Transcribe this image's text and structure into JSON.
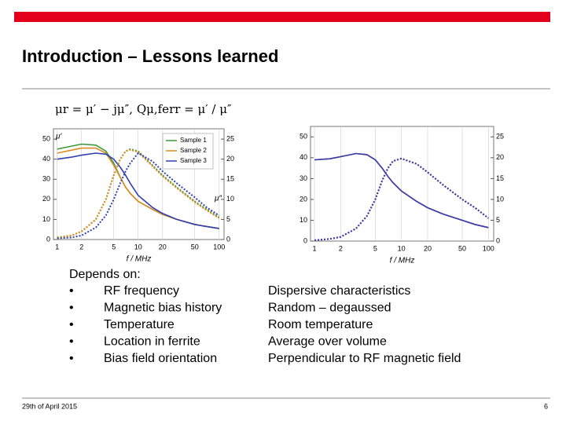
{
  "slide": {
    "title": "Introduction – Lessons learned",
    "formula": "μr = μ′ − jμ″,  Qμ,ferr = μ′ / μ″",
    "left_heading": "Depends on:",
    "bullets": [
      {
        "marker": "•",
        "text": "RF frequency"
      },
      {
        "marker": "•",
        "text": "Magnetic bias history"
      },
      {
        "marker": "•",
        "text": "Temperature"
      },
      {
        "marker": "•",
        "text": "Location in ferrite"
      },
      {
        "marker": "•",
        "text": "Bias field orientation"
      }
    ],
    "right_items": [
      "Dispersive characteristics",
      "Random – degaussed",
      "Room temperature",
      "Average over volume",
      "Perpendicular to RF magnetic field"
    ],
    "footer_date": "29th of April 2015",
    "page_number": "6"
  },
  "chart_data": [
    {
      "type": "line",
      "xscale": "log",
      "xlabel": "f / MHz",
      "ylabel": "μ′",
      "y2label": "μ″",
      "legend": "upper right",
      "x": [
        1,
        1.5,
        2,
        3,
        4,
        5,
        6,
        7,
        8,
        10,
        15,
        20,
        30,
        50,
        70,
        100
      ],
      "xlim": [
        0.9,
        115
      ],
      "xticks": [
        1,
        2,
        5,
        10,
        20,
        50,
        100
      ],
      "ylim": [
        0,
        52
      ],
      "yticks": [
        0,
        10,
        20,
        30,
        40,
        50
      ],
      "y2lim": [
        0,
        26
      ],
      "y2ticks": [
        0,
        5,
        10,
        15,
        20,
        25
      ],
      "series": [
        {
          "name": "Sample 1",
          "color": "#3a9a3a",
          "style": "solid",
          "values": [
            45,
            46.5,
            47.5,
            47,
            44,
            38,
            31,
            26,
            23,
            19,
            15,
            12.5,
            10,
            7.5,
            6.5,
            5.5
          ]
        },
        {
          "name": "Sample 2",
          "color": "#e08a20",
          "style": "solid",
          "values": [
            43,
            44.5,
            45.5,
            45.5,
            43,
            37,
            31,
            26,
            23,
            19,
            15,
            12.5,
            10,
            7.5,
            6.5,
            5.5
          ]
        },
        {
          "name": "Sample 3",
          "color": "#3040b0",
          "style": "solid",
          "values": [
            40,
            41,
            42,
            43,
            42.5,
            40,
            36,
            32,
            28,
            22,
            16,
            13,
            10,
            7.5,
            6.5,
            5.5
          ]
        },
        {
          "color": "#3a9a3a",
          "style": "dashed",
          "axis": "y2",
          "values": [
            0.5,
            1,
            2,
            5,
            10,
            16,
            20,
            22,
            22.5,
            22,
            18.5,
            16,
            13,
            9.5,
            7.5,
            5.5
          ]
        },
        {
          "color": "#e08a20",
          "style": "dashed",
          "axis": "y2",
          "values": [
            0.5,
            1,
            2,
            5,
            10,
            16,
            20,
            22,
            22.3,
            21.8,
            18.3,
            15.8,
            12.8,
            9.3,
            7.3,
            5.3
          ]
        },
        {
          "color": "#3040b0",
          "style": "dashed",
          "axis": "y2",
          "values": [
            0.3,
            0.5,
            1,
            3,
            6,
            10,
            14,
            17,
            19,
            21.5,
            19.5,
            17,
            14,
            10.5,
            8,
            6
          ]
        }
      ]
    },
    {
      "type": "line",
      "xscale": "log",
      "xlabel": "f / MHz",
      "x": [
        1,
        1.5,
        2,
        3,
        4,
        5,
        6,
        7,
        8,
        10,
        15,
        20,
        30,
        50,
        70,
        100
      ],
      "xlim": [
        0.9,
        115
      ],
      "xticks": [
        1,
        2,
        5,
        10,
        20,
        50,
        100
      ],
      "ylim": [
        0,
        52
      ],
      "yticks": [
        0,
        10,
        20,
        30,
        40,
        50
      ],
      "y2lim": [
        0,
        26
      ],
      "y2ticks": [
        0,
        5,
        10,
        15,
        20,
        25
      ],
      "series": [
        {
          "color": "#c83030",
          "style": "solid",
          "values": [
            39,
            39.5,
            40.5,
            42,
            41.5,
            39,
            35,
            31,
            28,
            24,
            19,
            16,
            13,
            10,
            8,
            6.5
          ]
        },
        {
          "color": "#3040b0",
          "style": "solid",
          "values": [
            39,
            39.5,
            40.5,
            42,
            41.5,
            39,
            35,
            31,
            28,
            24,
            19,
            16,
            13,
            10,
            8,
            6.5
          ]
        },
        {
          "color": "#c83030",
          "style": "dashed",
          "axis": "y2",
          "values": [
            0.2,
            0.5,
            1,
            3,
            6,
            10,
            14.5,
            17.5,
            19.2,
            19.8,
            18.5,
            16.5,
            13.5,
            10,
            8,
            5.5
          ]
        },
        {
          "color": "#3040b0",
          "style": "dashed",
          "axis": "y2",
          "values": [
            0.2,
            0.5,
            1,
            3,
            6,
            10,
            14.5,
            17.5,
            19.2,
            19.8,
            18.5,
            16.5,
            13.5,
            10,
            8,
            5.5
          ]
        }
      ]
    }
  ]
}
